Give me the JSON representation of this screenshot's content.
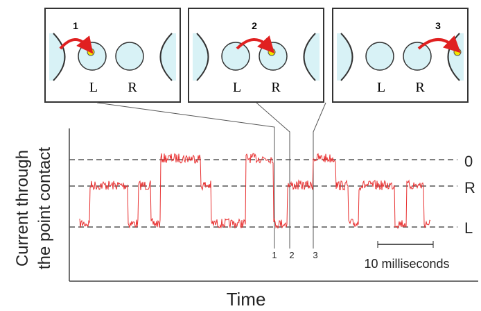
{
  "panels": [
    {
      "number": "1",
      "left_label": "L",
      "right_label": "R"
    },
    {
      "number": "2",
      "left_label": "L",
      "right_label": "R"
    },
    {
      "number": "3",
      "left_label": "L",
      "right_label": "R"
    }
  ],
  "y_axis_label": [
    "Current through",
    "the point contact"
  ],
  "x_axis_label": "Time",
  "levels": [
    "0",
    "R",
    "L"
  ],
  "markers": [
    "1",
    "2",
    "3"
  ],
  "scale_bar": "10 milliseconds"
}
